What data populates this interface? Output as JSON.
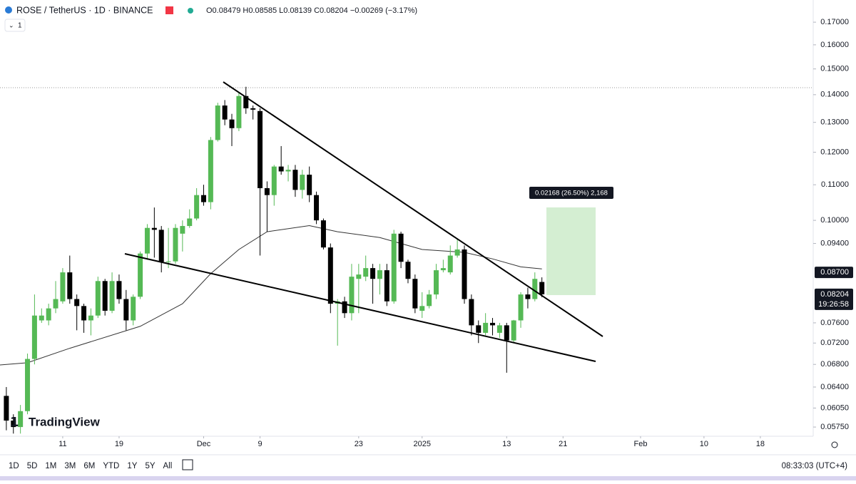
{
  "header": {
    "symbol": "ROSE / TetherUS · 1D · BINANCE",
    "ohlc": "O0.08479 H0.08585 L0.08139 C0.08204 −0.00269 (−3.17%)",
    "interval_button": "1"
  },
  "chart_data": {
    "type": "candlestick",
    "log_scale": true,
    "up_color": "#55b955",
    "down_color": "#000000",
    "xlim": [
      -8.9,
      106.5
    ],
    "xticks": [
      {
        "value": 0,
        "label": "11"
      },
      {
        "value": 8,
        "label": "19"
      },
      {
        "value": 20,
        "label": "Dec"
      },
      {
        "value": 28,
        "label": "9"
      },
      {
        "value": 42,
        "label": "23"
      },
      {
        "value": 51,
        "label": "2025"
      },
      {
        "value": 63,
        "label": "13"
      },
      {
        "value": 71,
        "label": "21"
      },
      {
        "value": 82,
        "label": "Feb"
      },
      {
        "value": 91,
        "label": "10"
      },
      {
        "value": 99,
        "label": "18"
      }
    ],
    "ylim": [
      0.0561,
      0.1804
    ],
    "yticks": [
      {
        "value": 0.17,
        "label": "0.17000"
      },
      {
        "value": 0.16,
        "label": "0.16000"
      },
      {
        "value": 0.15,
        "label": "0.15000"
      },
      {
        "value": 0.14,
        "label": "0.14000"
      },
      {
        "value": 0.13,
        "label": "0.13000"
      },
      {
        "value": 0.12,
        "label": "0.12000"
      },
      {
        "value": 0.11,
        "label": "0.11000"
      },
      {
        "value": 0.1,
        "label": "0.10000"
      },
      {
        "value": 0.094,
        "label": "0.09400"
      },
      {
        "value": 0.076,
        "label": "0.07600"
      },
      {
        "value": 0.072,
        "label": "0.07200"
      },
      {
        "value": 0.068,
        "label": "0.06800"
      },
      {
        "value": 0.064,
        "label": "0.06400"
      },
      {
        "value": 0.0605,
        "label": "0.06050"
      },
      {
        "value": 0.0575,
        "label": "0.05750"
      }
    ],
    "candles": [
      {
        "x": -8,
        "open": 0.0625,
        "high": 0.064,
        "low": 0.057,
        "close": 0.0585
      },
      {
        "x": -7,
        "open": 0.0585,
        "high": 0.0595,
        "low": 0.0565,
        "close": 0.0575
      },
      {
        "x": -6,
        "open": 0.0575,
        "high": 0.061,
        "low": 0.0565,
        "close": 0.06
      },
      {
        "x": -5,
        "open": 0.06,
        "high": 0.07,
        "low": 0.0595,
        "close": 0.069
      },
      {
        "x": -4,
        "open": 0.069,
        "high": 0.082,
        "low": 0.068,
        "close": 0.0775
      },
      {
        "x": -3,
        "open": 0.0765,
        "high": 0.079,
        "low": 0.076,
        "close": 0.0775
      },
      {
        "x": -2,
        "open": 0.0765,
        "high": 0.08,
        "low": 0.0755,
        "close": 0.079
      },
      {
        "x": -1,
        "open": 0.079,
        "high": 0.085,
        "low": 0.078,
        "close": 0.081
      },
      {
        "x": 0,
        "open": 0.0805,
        "high": 0.088,
        "low": 0.08,
        "close": 0.087
      },
      {
        "x": 1,
        "open": 0.087,
        "high": 0.091,
        "low": 0.08,
        "close": 0.081
      },
      {
        "x": 2,
        "open": 0.081,
        "high": 0.082,
        "low": 0.0745,
        "close": 0.0795
      },
      {
        "x": 3,
        "open": 0.0795,
        "high": 0.08,
        "low": 0.074,
        "close": 0.0765
      },
      {
        "x": 4,
        "open": 0.0765,
        "high": 0.079,
        "low": 0.0735,
        "close": 0.0775
      },
      {
        "x": 5,
        "open": 0.0775,
        "high": 0.086,
        "low": 0.077,
        "close": 0.085
      },
      {
        "x": 6,
        "open": 0.085,
        "high": 0.0855,
        "low": 0.0775,
        "close": 0.0785
      },
      {
        "x": 7,
        "open": 0.0785,
        "high": 0.087,
        "low": 0.078,
        "close": 0.085
      },
      {
        "x": 8,
        "open": 0.085,
        "high": 0.0865,
        "low": 0.08,
        "close": 0.081
      },
      {
        "x": 9,
        "open": 0.081,
        "high": 0.083,
        "low": 0.0745,
        "close": 0.0765
      },
      {
        "x": 10,
        "open": 0.0765,
        "high": 0.082,
        "low": 0.0755,
        "close": 0.0815
      },
      {
        "x": 11,
        "open": 0.0815,
        "high": 0.092,
        "low": 0.081,
        "close": 0.0915
      },
      {
        "x": 12,
        "open": 0.0915,
        "high": 0.099,
        "low": 0.09,
        "close": 0.098
      },
      {
        "x": 13,
        "open": 0.098,
        "high": 0.1035,
        "low": 0.0905,
        "close": 0.0975
      },
      {
        "x": 14,
        "open": 0.0975,
        "high": 0.0985,
        "low": 0.087,
        "close": 0.0895
      },
      {
        "x": 15,
        "open": 0.0895,
        "high": 0.098,
        "low": 0.088,
        "close": 0.0896
      },
      {
        "x": 16,
        "open": 0.0896,
        "high": 0.099,
        "low": 0.089,
        "close": 0.098
      },
      {
        "x": 17,
        "open": 0.0965,
        "high": 0.1,
        "low": 0.092,
        "close": 0.0985
      },
      {
        "x": 18,
        "open": 0.0985,
        "high": 0.103,
        "low": 0.098,
        "close": 0.1005
      },
      {
        "x": 19,
        "open": 0.1005,
        "high": 0.109,
        "low": 0.1,
        "close": 0.107
      },
      {
        "x": 20,
        "open": 0.107,
        "high": 0.11,
        "low": 0.104,
        "close": 0.105
      },
      {
        "x": 21,
        "open": 0.105,
        "high": 0.125,
        "low": 0.103,
        "close": 0.124
      },
      {
        "x": 22,
        "open": 0.124,
        "high": 0.137,
        "low": 0.1235,
        "close": 0.136
      },
      {
        "x": 23,
        "open": 0.136,
        "high": 0.138,
        "low": 0.129,
        "close": 0.131
      },
      {
        "x": 24,
        "open": 0.131,
        "high": 0.133,
        "low": 0.122,
        "close": 0.128
      },
      {
        "x": 25,
        "open": 0.128,
        "high": 0.141,
        "low": 0.127,
        "close": 0.1395
      },
      {
        "x": 26,
        "open": 0.1395,
        "high": 0.143,
        "low": 0.133,
        "close": 0.135
      },
      {
        "x": 27,
        "open": 0.135,
        "high": 0.136,
        "low": 0.131,
        "close": 0.1345
      },
      {
        "x": 28,
        "open": 0.134,
        "high": 0.135,
        "low": 0.091,
        "close": 0.109
      },
      {
        "x": 29,
        "open": 0.109,
        "high": 0.111,
        "low": 0.097,
        "close": 0.107
      },
      {
        "x": 30,
        "open": 0.107,
        "high": 0.116,
        "low": 0.104,
        "close": 0.1155
      },
      {
        "x": 31,
        "open": 0.1155,
        "high": 0.122,
        "low": 0.113,
        "close": 0.114
      },
      {
        "x": 32,
        "open": 0.114,
        "high": 0.116,
        "low": 0.111,
        "close": 0.1145
      },
      {
        "x": 33,
        "open": 0.1145,
        "high": 0.116,
        "low": 0.1065,
        "close": 0.1085
      },
      {
        "x": 34,
        "open": 0.1085,
        "high": 0.1145,
        "low": 0.106,
        "close": 0.113
      },
      {
        "x": 35,
        "open": 0.113,
        "high": 0.1155,
        "low": 0.105,
        "close": 0.107
      },
      {
        "x": 36,
        "open": 0.107,
        "high": 0.108,
        "low": 0.099,
        "close": 0.1
      },
      {
        "x": 37,
        "open": 0.1,
        "high": 0.1005,
        "low": 0.0925,
        "close": 0.093
      },
      {
        "x": 38,
        "open": 0.093,
        "high": 0.094,
        "low": 0.078,
        "close": 0.08
      },
      {
        "x": 39,
        "open": 0.08,
        "high": 0.081,
        "low": 0.0715,
        "close": 0.0805
      },
      {
        "x": 40,
        "open": 0.0805,
        "high": 0.0815,
        "low": 0.077,
        "close": 0.078
      },
      {
        "x": 41,
        "open": 0.078,
        "high": 0.089,
        "low": 0.0765,
        "close": 0.086
      },
      {
        "x": 42,
        "open": 0.0855,
        "high": 0.089,
        "low": 0.078,
        "close": 0.0865
      },
      {
        "x": 43,
        "open": 0.086,
        "high": 0.091,
        "low": 0.085,
        "close": 0.088
      },
      {
        "x": 44,
        "open": 0.088,
        "high": 0.089,
        "low": 0.08,
        "close": 0.0855
      },
      {
        "x": 45,
        "open": 0.0855,
        "high": 0.089,
        "low": 0.082,
        "close": 0.0875
      },
      {
        "x": 46,
        "open": 0.0875,
        "high": 0.089,
        "low": 0.0795,
        "close": 0.0805
      },
      {
        "x": 47,
        "open": 0.0805,
        "high": 0.0975,
        "low": 0.08,
        "close": 0.0965
      },
      {
        "x": 48,
        "open": 0.0965,
        "high": 0.097,
        "low": 0.088,
        "close": 0.0895
      },
      {
        "x": 49,
        "open": 0.0895,
        "high": 0.09,
        "low": 0.0845,
        "close": 0.0855
      },
      {
        "x": 50,
        "open": 0.0855,
        "high": 0.0865,
        "low": 0.078,
        "close": 0.079
      },
      {
        "x": 51,
        "open": 0.0785,
        "high": 0.0825,
        "low": 0.077,
        "close": 0.0795
      },
      {
        "x": 52,
        "open": 0.0795,
        "high": 0.083,
        "low": 0.079,
        "close": 0.082
      },
      {
        "x": 53,
        "open": 0.082,
        "high": 0.089,
        "low": 0.081,
        "close": 0.0875
      },
      {
        "x": 54,
        "open": 0.0875,
        "high": 0.09,
        "low": 0.087,
        "close": 0.088
      },
      {
        "x": 55,
        "open": 0.087,
        "high": 0.0935,
        "low": 0.0865,
        "close": 0.091
      },
      {
        "x": 56,
        "open": 0.091,
        "high": 0.095,
        "low": 0.0905,
        "close": 0.0925
      },
      {
        "x": 57,
        "open": 0.0925,
        "high": 0.0935,
        "low": 0.08,
        "close": 0.081
      },
      {
        "x": 58,
        "open": 0.081,
        "high": 0.082,
        "low": 0.0735,
        "close": 0.0755
      },
      {
        "x": 59,
        "open": 0.0755,
        "high": 0.0765,
        "low": 0.072,
        "close": 0.074
      },
      {
        "x": 60,
        "open": 0.074,
        "high": 0.078,
        "low": 0.0735,
        "close": 0.076
      },
      {
        "x": 61,
        "open": 0.076,
        "high": 0.077,
        "low": 0.0735,
        "close": 0.0755
      },
      {
        "x": 62,
        "open": 0.074,
        "high": 0.076,
        "low": 0.073,
        "close": 0.0755
      },
      {
        "x": 63,
        "open": 0.0755,
        "high": 0.076,
        "low": 0.0665,
        "close": 0.0725
      },
      {
        "x": 64,
        "open": 0.0725,
        "high": 0.0766,
        "low": 0.072,
        "close": 0.0765
      },
      {
        "x": 65,
        "open": 0.0765,
        "high": 0.0825,
        "low": 0.075,
        "close": 0.082
      },
      {
        "x": 66,
        "open": 0.082,
        "high": 0.0835,
        "low": 0.079,
        "close": 0.081
      },
      {
        "x": 67,
        "open": 0.081,
        "high": 0.087,
        "low": 0.0805,
        "close": 0.0855
      },
      {
        "x": 68,
        "open": 0.08479,
        "high": 0.08585,
        "low": 0.08139,
        "close": 0.08204
      }
    ],
    "moving_average": {
      "color": "#333333",
      "x": [
        -8.9,
        -5,
        1,
        11,
        17,
        21,
        25,
        29,
        35,
        39,
        45,
        51,
        57,
        61,
        65,
        68
      ],
      "values": [
        0.0679,
        0.0683,
        0.071,
        0.0753,
        0.08,
        0.0867,
        0.0925,
        0.097,
        0.0986,
        0.097,
        0.0955,
        0.0925,
        0.0918,
        0.0902,
        0.0883,
        0.0878
      ]
    },
    "price_labels": [
      {
        "value": 0.087,
        "label": "0.08700"
      },
      {
        "value": 0.08204,
        "label": "0.08204",
        "countdown": "19:26:58"
      }
    ],
    "measure_label": "0.02168 (26.50%) 2,168"
  },
  "toolbar": {
    "ranges": [
      "1D",
      "5D",
      "1M",
      "3M",
      "6M",
      "YTD",
      "1Y",
      "5Y",
      "All"
    ],
    "clock": "08:33:03 (UTC+4)"
  },
  "logo": "TradingView"
}
